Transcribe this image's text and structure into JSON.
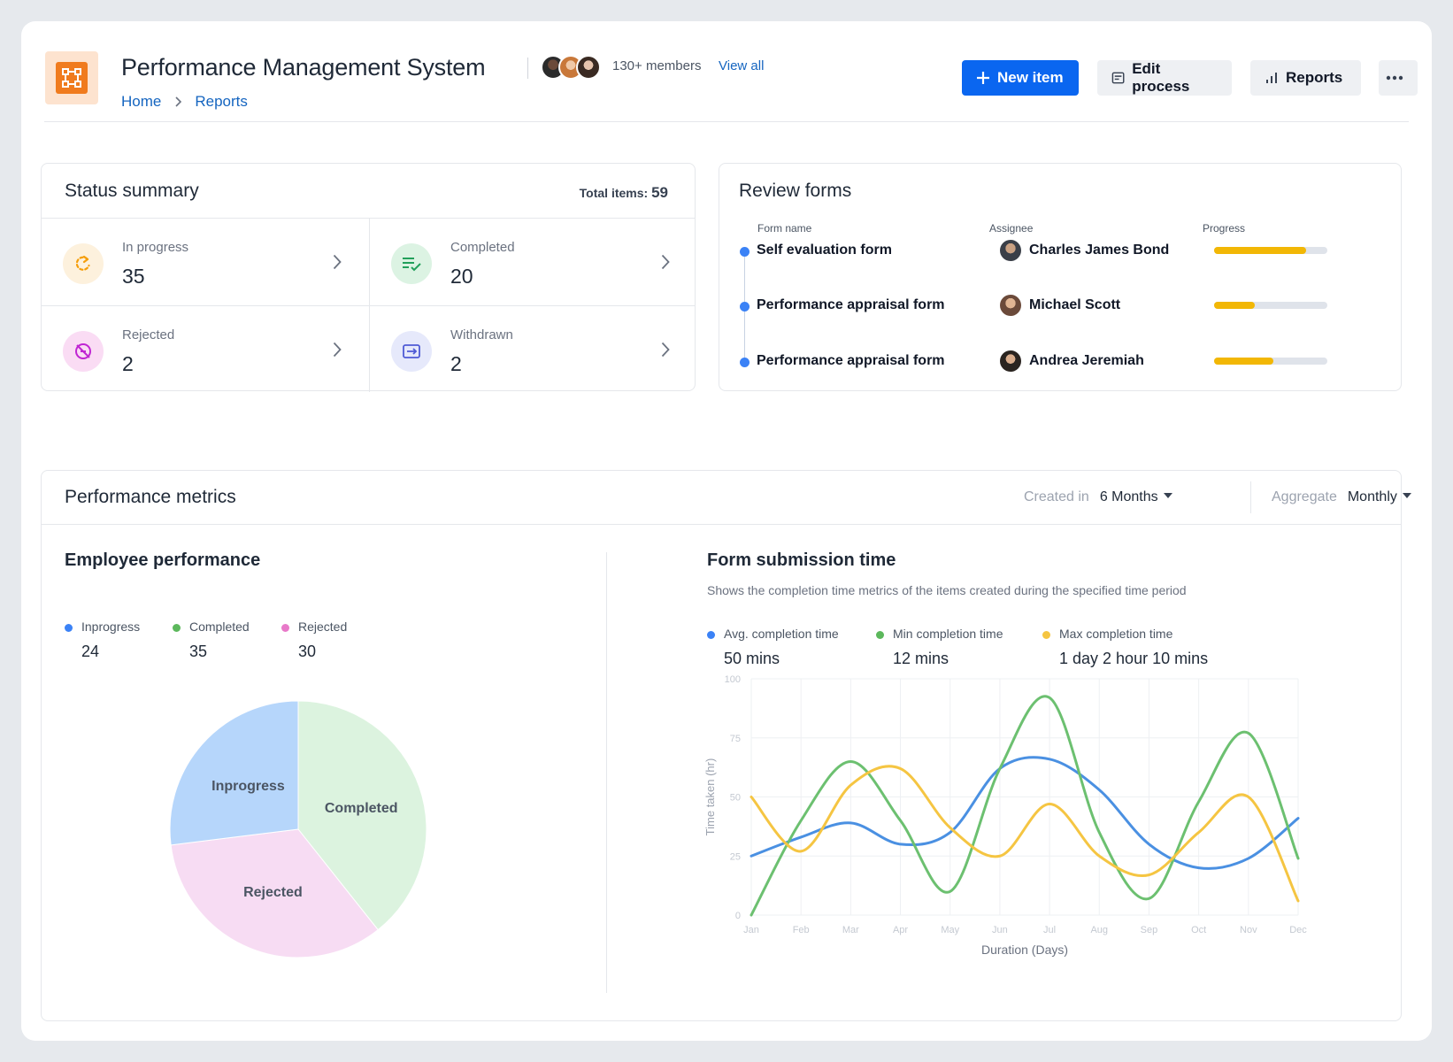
{
  "header": {
    "title": "Performance Management System",
    "members": "130+ members",
    "view_all": "View all",
    "breadcrumb": [
      "Home",
      "Reports"
    ],
    "new_item": "New item",
    "edit_process": "Edit process",
    "reports": "Reports"
  },
  "status_summary": {
    "title": "Status summary",
    "total_label": "Total items:",
    "total_value": "59",
    "items": [
      {
        "label": "In progress",
        "value": "35",
        "icon": "refresh-icon",
        "color": "#f59e0b"
      },
      {
        "label": "Completed",
        "value": "20",
        "icon": "checklist-icon",
        "color": "#22a05b"
      },
      {
        "label": "Rejected",
        "value": "2",
        "icon": "blocked-icon",
        "color": "#c026d3"
      },
      {
        "label": "Withdrawn",
        "value": "2",
        "icon": "withdraw-icon",
        "color": "#4f5bd5"
      }
    ]
  },
  "review_forms": {
    "title": "Review forms",
    "columns": [
      "Form name",
      "Assignee",
      "Progress"
    ],
    "rows": [
      {
        "form": "Self evaluation form",
        "assignee": "Charles James Bond",
        "progress": 0.81
      },
      {
        "form": "Performance appraisal form",
        "assignee": "Michael Scott",
        "progress": 0.36
      },
      {
        "form": "Performance appraisal form",
        "assignee": "Andrea Jeremiah",
        "progress": 0.52
      }
    ]
  },
  "metrics": {
    "title": "Performance metrics",
    "created_in_label": "Created in",
    "created_in_value": "6 Months",
    "aggregate_label": "Aggregate",
    "aggregate_value": "Monthly"
  },
  "employee_performance": {
    "title": "Employee performance",
    "legend": [
      {
        "label": "Inprogress",
        "value": "24",
        "color": "#3b82f6"
      },
      {
        "label": "Completed",
        "value": "35",
        "color": "#5cb85c"
      },
      {
        "label": "Rejected",
        "value": "30",
        "color": "#e879c9"
      }
    ]
  },
  "form_submission": {
    "title": "Form submission time",
    "subtitle": "Shows the completion time metrics of the items created during the specified time period",
    "legend": [
      {
        "label": "Avg. completion time",
        "value": "50 mins",
        "color": "#3b82f6"
      },
      {
        "label": "Min completion time",
        "value": "12 mins",
        "color": "#5cb85c"
      },
      {
        "label": "Max completion time",
        "value": "1 day 2 hour 10 mins",
        "color": "#f5c542"
      }
    ]
  },
  "chart_data": [
    {
      "type": "pie",
      "categories": [
        "Completed",
        "Rejected",
        "Inprogress"
      ],
      "values": [
        35,
        30,
        24
      ],
      "colors": [
        "#dcf3df",
        "#f7dcf3",
        "#b6d6fb"
      ]
    },
    {
      "type": "line",
      "xlabel": "Duration (Days)",
      "ylabel": "Time taken (hr)",
      "ylim": [
        0,
        100
      ],
      "yticks": [
        0,
        25,
        50,
        75,
        100
      ],
      "categories": [
        "Jan",
        "Feb",
        "Mar",
        "Apr",
        "May",
        "Jun",
        "Jul",
        "Aug",
        "Sep",
        "Oct",
        "Nov",
        "Dec"
      ],
      "grid": true,
      "series": [
        {
          "name": "Avg. completion time",
          "color": "#4a90e2",
          "values": [
            25,
            33,
            39,
            30,
            35,
            62,
            66,
            53,
            30,
            20,
            24,
            41
          ]
        },
        {
          "name": "Min completion time",
          "color": "#6cc070",
          "values": [
            0,
            40,
            65,
            40,
            10,
            62,
            92,
            35,
            7,
            48,
            77,
            24
          ]
        },
        {
          "name": "Max completion time",
          "color": "#f5c542",
          "values": [
            50,
            27,
            55,
            62,
            37,
            25,
            47,
            25,
            17,
            35,
            50,
            6
          ]
        }
      ]
    }
  ]
}
